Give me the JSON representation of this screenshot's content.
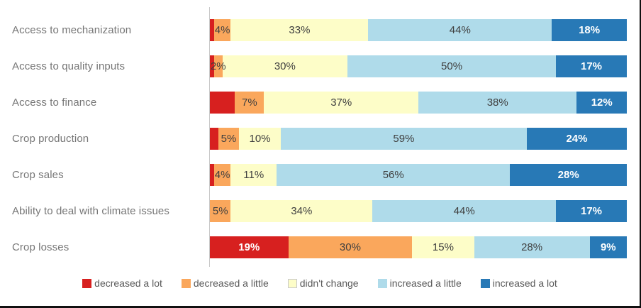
{
  "frame": {
    "background": "#ffffff",
    "border_color": "#111111",
    "axis_line_color": "#c8c8c8"
  },
  "chart_data": {
    "type": "bar",
    "orientation": "horizontal",
    "stacked": true,
    "unit": "%",
    "xlim": [
      0,
      100
    ],
    "grid": false,
    "legend_position": "bottom",
    "title": "",
    "xlabel": "",
    "ylabel": "",
    "series": [
      {
        "name": "decreased a lot",
        "color": "#d7201f",
        "label_color": "#ffffff",
        "label_bold": true,
        "marker_border": ""
      },
      {
        "name": "decreased a little",
        "color": "#faa75c",
        "label_color": "#3f3f3f",
        "label_bold": false,
        "marker_border": ""
      },
      {
        "name": "didn't change",
        "color": "#fdfdc8",
        "label_color": "#3f3f3f",
        "label_bold": false,
        "marker_border": "#c9c9c9"
      },
      {
        "name": "increased a little",
        "color": "#afdbea",
        "label_color": "#3f3f3f",
        "label_bold": false,
        "marker_border": ""
      },
      {
        "name": "increased a lot",
        "color": "#2879b6",
        "label_color": "#ffffff",
        "label_bold": true,
        "marker_border": ""
      }
    ],
    "categories": [
      "Access to mechanization",
      "Access to quality inputs",
      "Access to finance",
      "Crop production",
      "Crop sales",
      "Ability to deal with climate issues",
      "Crop losses"
    ],
    "rows": [
      {
        "category": "Access to mechanization",
        "values": [
          1,
          4,
          33,
          44,
          18
        ],
        "labels": [
          "",
          "4%",
          "33%",
          "44%",
          "18%"
        ]
      },
      {
        "category": "Access to quality inputs",
        "values": [
          1,
          2,
          30,
          50,
          17
        ],
        "labels": [
          "",
          "2%",
          "30%",
          "50%",
          "17%"
        ]
      },
      {
        "category": "Access to finance",
        "values": [
          6,
          7,
          37,
          38,
          12
        ],
        "labels": [
          "",
          "7%",
          "37%",
          "38%",
          "12%"
        ]
      },
      {
        "category": "Crop production",
        "values": [
          2,
          5,
          10,
          59,
          24
        ],
        "labels": [
          "",
          "5%",
          "10%",
          "59%",
          "24%"
        ]
      },
      {
        "category": "Crop sales",
        "values": [
          1,
          4,
          11,
          56,
          28
        ],
        "labels": [
          "",
          "4%",
          "11%",
          "56%",
          "28%"
        ]
      },
      {
        "category": "Ability to deal with climate issues",
        "values": [
          0,
          5,
          34,
          44,
          17
        ],
        "labels": [
          "",
          "5%",
          "34%",
          "44%",
          "17%"
        ]
      },
      {
        "category": "Crop losses",
        "values": [
          19,
          30,
          15,
          28,
          9
        ],
        "labels": [
          "19%",
          "30%",
          "15%",
          "28%",
          "9%"
        ]
      }
    ]
  },
  "legend": {
    "items": [
      "decreased a lot",
      "decreased a little",
      "didn't change",
      "increased a little",
      "increased a lot"
    ]
  }
}
